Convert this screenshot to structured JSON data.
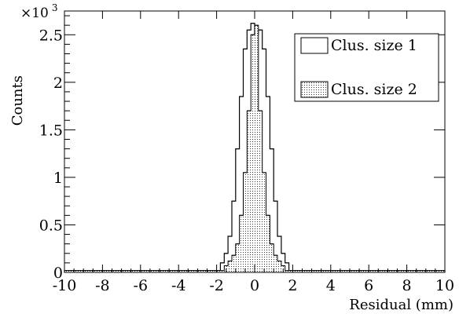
{
  "chart_data": {
    "type": "step-histogram",
    "xlabel": "Residual (mm)",
    "ylabel": "Counts",
    "y_multiplier": {
      "base": "×10",
      "exponent": "3"
    },
    "xlim": [
      -10,
      10
    ],
    "ylim": [
      0,
      2.75
    ],
    "x_ticks": [
      {
        "value": -10,
        "label": "-10"
      },
      {
        "value": -8,
        "label": "-8"
      },
      {
        "value": -6,
        "label": "-6"
      },
      {
        "value": -4,
        "label": "-4"
      },
      {
        "value": -2,
        "label": "-2"
      },
      {
        "value": 0,
        "label": "0"
      },
      {
        "value": 2,
        "label": "2"
      },
      {
        "value": 4,
        "label": "4"
      },
      {
        "value": 6,
        "label": "6"
      },
      {
        "value": 8,
        "label": "8"
      },
      {
        "value": 10,
        "label": "10"
      }
    ],
    "y_ticks": [
      {
        "value": 0,
        "label": "0"
      },
      {
        "value": 0.5,
        "label": "0.5"
      },
      {
        "value": 1,
        "label": "1"
      },
      {
        "value": 1.5,
        "label": "1.5"
      },
      {
        "value": 2,
        "label": "2"
      },
      {
        "value": 2.5,
        "label": "2.5"
      }
    ],
    "grid": false,
    "legend_position": "top-right",
    "series": [
      {
        "name": "Clus. size 1",
        "style": "outline",
        "color": "#000000",
        "x": [
          -1.7,
          -1.5,
          -1.3,
          -1.1,
          -0.9,
          -0.7,
          -0.5,
          -0.3,
          -0.1,
          0.1,
          0.3,
          0.5,
          0.7,
          0.9,
          1.1,
          1.3,
          1.5,
          1.7
        ],
        "values": [
          0.1,
          0.2,
          0.38,
          0.75,
          1.3,
          1.85,
          2.35,
          2.55,
          2.62,
          2.5,
          2.55,
          2.35,
          1.85,
          1.3,
          0.75,
          0.38,
          0.2,
          0.1
        ]
      },
      {
        "name": "Clus. size 2",
        "style": "filled-dotted",
        "color": "#000000",
        "x": [
          -1.5,
          -1.3,
          -1.1,
          -0.9,
          -0.7,
          -0.5,
          -0.3,
          -0.1,
          0.1,
          0.3,
          0.5,
          0.7,
          0.9,
          1.1,
          1.3,
          1.5
        ],
        "values": [
          0.07,
          0.12,
          0.18,
          0.3,
          0.6,
          1.05,
          1.7,
          2.5,
          2.6,
          1.7,
          1.05,
          0.6,
          0.3,
          0.18,
          0.12,
          0.07
        ]
      }
    ],
    "tail_level": 0.02
  }
}
